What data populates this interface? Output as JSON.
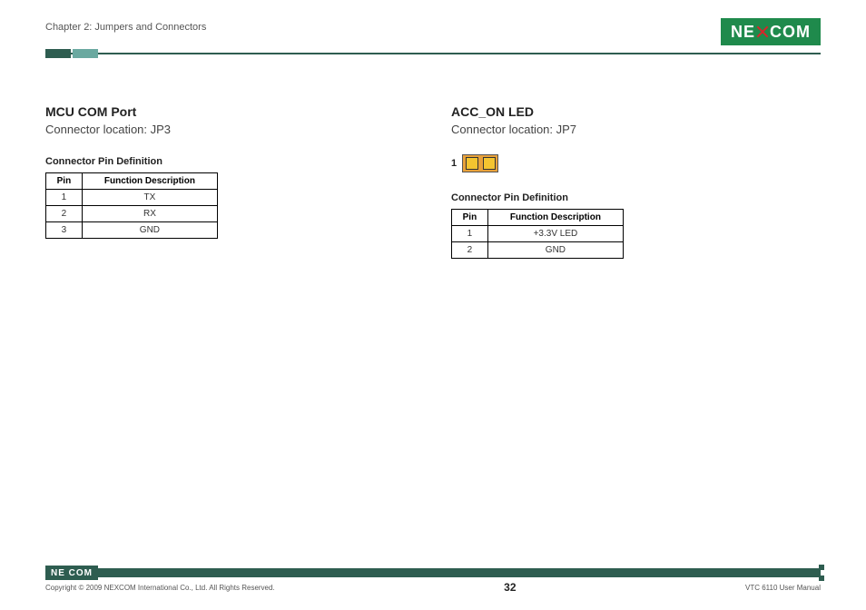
{
  "header": {
    "chapter": "Chapter 2: Jumpers and Connectors",
    "logo_left": "NE",
    "logo_right": "COM"
  },
  "left": {
    "title": "MCU COM Port",
    "subtitle": "Connector location: JP3",
    "table_title": "Connector Pin Definition",
    "head_pin": "Pin",
    "head_fn": "Function Description",
    "rows": [
      {
        "pin": "1",
        "fn": "TX"
      },
      {
        "pin": "2",
        "fn": "RX"
      },
      {
        "pin": "3",
        "fn": "GND"
      }
    ]
  },
  "right": {
    "title": "ACC_ON LED",
    "subtitle": "Connector location: JP7",
    "jumper_label": "1",
    "table_title": "Connector Pin Definition",
    "head_pin": "Pin",
    "head_fn": "Function Description",
    "rows": [
      {
        "pin": "1",
        "fn": "+3.3V LED"
      },
      {
        "pin": "2",
        "fn": "GND"
      }
    ]
  },
  "footer": {
    "logo": "NE COM",
    "copyright": "Copyright © 2009 NEXCOM International Co., Ltd. All Rights Reserved.",
    "page": "32",
    "manual": "VTC 6110 User Manual"
  },
  "style": {
    "brand_green": "#1f8a4c",
    "rule_green": "#2e5d50",
    "jumper_body": "#e8a13a",
    "jumper_pin": "#f4c430",
    "table_border": "#000000",
    "bg": "#ffffff"
  }
}
